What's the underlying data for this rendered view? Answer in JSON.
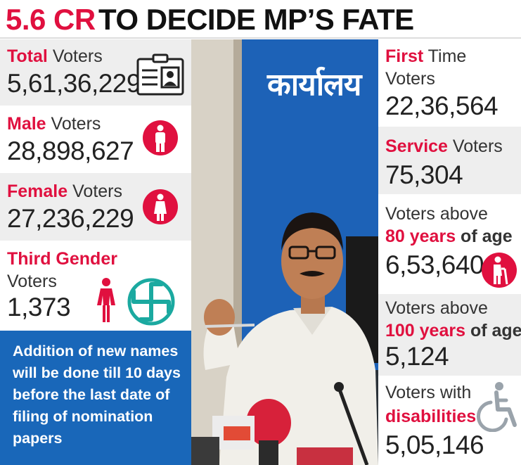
{
  "headline": {
    "highlight": "5.6 CR",
    "rest": "TO DECIDE MP’S FATE"
  },
  "left": {
    "total": {
      "hl": "Total",
      "label": " Voters",
      "value": "5,61,36,229",
      "icon": "voter-id-card-icon"
    },
    "male": {
      "hl": "Male",
      "label": " Voters",
      "value": "28,898,627",
      "icon": "male-person-icon"
    },
    "female": {
      "hl": "Female",
      "label": " Voters",
      "value": "27,236,229",
      "icon": "female-person-icon"
    },
    "third": {
      "hl": "Third Gender",
      "line2": "Voters",
      "value": "1,373",
      "icons": [
        "person-icon",
        "swastika-symbol-icon"
      ]
    },
    "note": "Addition of new names will be done till 10 days before the last date of filing of nomination papers"
  },
  "photo": {
    "board_text": "कार्यालय"
  },
  "right": {
    "first_time": {
      "hl": "First",
      "label": " Time",
      "line2": "Voters",
      "value": "22,36,564"
    },
    "service": {
      "hl": "Service",
      "label": " Voters",
      "value": "75,304"
    },
    "above80": {
      "line1": "Voters above",
      "hl": "80 years",
      "label": " of age",
      "value": "6,53,640",
      "icon": "elderly-person-icon"
    },
    "above100": {
      "line1": "Voters above",
      "hl": "100 years",
      "label": " of age",
      "value": "5,124"
    },
    "disabilities": {
      "line1": "Voters with",
      "hl": "disabilities",
      "value": "5,05,146",
      "icon": "wheelchair-icon"
    }
  },
  "colors": {
    "accent": "#e0103f",
    "blue": "#1967b9",
    "panel": "#eeeeee"
  }
}
